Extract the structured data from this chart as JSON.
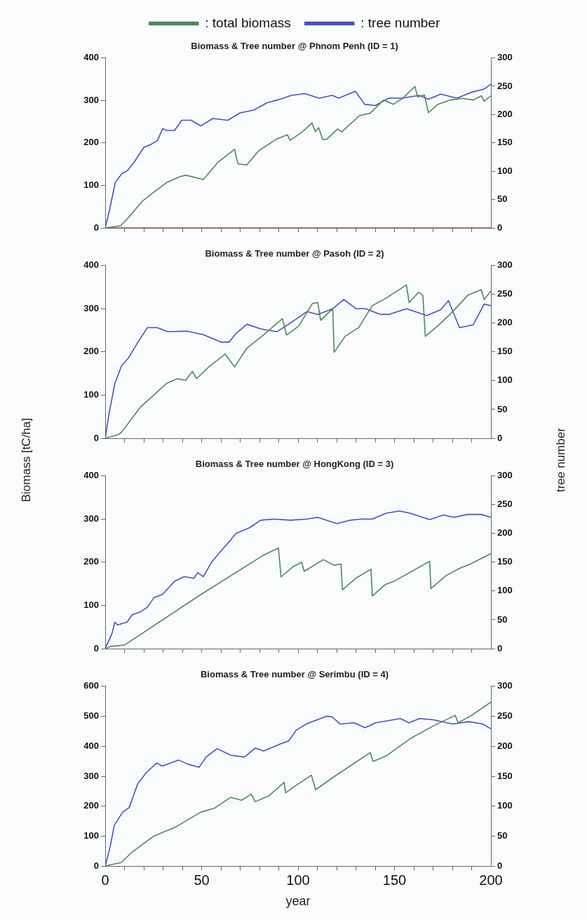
{
  "chart_data": [
    {
      "type": "line",
      "title": "Biomass & Tree number @ Phnom Penh (ID = 1)",
      "legend": "top",
      "marker": "none",
      "grid": false,
      "tick_labels": "y",
      "xlim": [
        0,
        200
      ],
      "xticks": [
        0,
        {
          "value": 10,
          "label": null
        },
        {
          "value": 20,
          "label": null
        },
        {
          "value": 30,
          "label": null
        },
        {
          "value": 40,
          "label": null
        },
        50,
        {
          "value": 60,
          "label": null
        },
        {
          "value": 70,
          "label": null
        },
        {
          "value": 80,
          "label": null
        },
        {
          "value": 90,
          "label": null
        },
        100,
        {
          "value": 110,
          "label": null
        },
        {
          "value": 120,
          "label": null
        },
        {
          "value": 130,
          "label": null
        },
        {
          "value": 140,
          "label": null
        },
        150,
        {
          "value": 160,
          "label": null
        },
        {
          "value": 170,
          "label": null
        },
        {
          "value": 180,
          "label": null
        },
        {
          "value": 190,
          "label": null
        },
        200
      ],
      "ylim": [
        0,
        400
      ],
      "yticks": [
        0,
        100,
        200,
        300,
        400
      ],
      "y2lim": [
        0,
        300
      ],
      "y2ticks": [
        0,
        50,
        100,
        150,
        200,
        250,
        300
      ],
      "series": [
        {
          "name": ": total biomass",
          "color": "#4a8a5a",
          "x": [
            0,
            8,
            13.6,
            19.3,
            24.9,
            32,
            39,
            41.8,
            50.9,
            58.6,
            67.1,
            68.8,
            73.4,
            79.7,
            88.9,
            94.5,
            95.9,
            102.2,
            107.2,
            109,
            110.7,
            112.8,
            115,
            120.5,
            122.6,
            131.8,
            137.4,
            144.4,
            149.4,
            154.3,
            160.6,
            162,
            165.5,
            167.6,
            172.6,
            178.9,
            185.2,
            190.9,
            195.1,
            196.5,
            200
          ],
          "values": [
            0,
            5,
            32,
            63,
            83,
            107,
            121,
            124,
            114,
            155,
            185,
            151,
            148,
            182,
            209,
            219,
            206,
            226,
            247,
            226,
            236,
            208,
            209,
            233,
            226,
            264,
            270,
            301,
            291,
            305,
            333,
            308,
            313,
            271,
            291,
            301,
            305,
            301,
            311,
            298,
            311
          ]
        },
        {
          "name": ": tree number",
          "color": "#4a50c0",
          "axis": "y2",
          "x": [
            0,
            2.4,
            5.2,
            8.7,
            11.5,
            15,
            20,
            23.5,
            27,
            29.8,
            32,
            36,
            39.7,
            44.6,
            49.5,
            55.8,
            63.6,
            69.9,
            77,
            84,
            89.6,
            96.6,
            103.6,
            111,
            117.7,
            121,
            129.7,
            134.6,
            140,
            147,
            154,
            162.7,
            167.6,
            174,
            182.4,
            189.5,
            196.5,
            200
          ],
          "values": [
            0,
            34,
            80,
            96,
            101,
            116,
            142,
            147,
            154,
            175,
            172,
            172,
            190,
            190,
            180,
            193,
            190,
            203,
            208,
            221,
            226,
            234,
            237,
            229,
            234,
            229,
            241,
            218,
            216,
            229,
            229,
            234,
            227,
            236,
            229,
            239,
            245,
            254
          ]
        },
        {
          "color": "#d04a3a",
          "x": [
            0,
            200
          ],
          "values": [
            0,
            0
          ]
        }
      ]
    },
    {
      "type": "line",
      "title": "Biomass & Tree number @ Pasoh (ID = 2)",
      "marker": "none",
      "grid": false,
      "tick_labels": "y",
      "ylabel": "Biomass [tC/ha]",
      "y2label": "tree number",
      "xlim": [
        0,
        200
      ],
      "xticks": [
        0,
        {
          "value": 10,
          "label": null
        },
        {
          "value": 20,
          "label": null
        },
        {
          "value": 30,
          "label": null
        },
        {
          "value": 40,
          "label": null
        },
        50,
        {
          "value": 60,
          "label": null
        },
        {
          "value": 70,
          "label": null
        },
        {
          "value": 80,
          "label": null
        },
        {
          "value": 90,
          "label": null
        },
        100,
        {
          "value": 110,
          "label": null
        },
        {
          "value": 120,
          "label": null
        },
        {
          "value": 130,
          "label": null
        },
        {
          "value": 140,
          "label": null
        },
        150,
        {
          "value": 160,
          "label": null
        },
        {
          "value": 170,
          "label": null
        },
        {
          "value": 180,
          "label": null
        },
        {
          "value": 190,
          "label": null
        },
        200
      ],
      "ylim": [
        0,
        400
      ],
      "yticks": [
        0,
        100,
        200,
        300,
        400
      ],
      "y2lim": [
        0,
        300
      ],
      "y2ticks": [
        0,
        50,
        100,
        150,
        200,
        250,
        300
      ],
      "series": [
        {
          "color": "#4a8a5a",
          "x": [
            0,
            7,
            8.5,
            18.4,
            26.9,
            31.8,
            37.5,
            41.7,
            45.2,
            47.4,
            53.7,
            62.2,
            67.1,
            73.5,
            82,
            91.9,
            94,
            100.4,
            107.4,
            110.2,
            111.7,
            118,
            118.7,
            124.4,
            131.4,
            138.5,
            145.5,
            156.2,
            157.6,
            162.5,
            164.7,
            166,
            172.4,
            179.5,
            188,
            195,
            196.5,
            200
          ],
          "values": [
            0,
            9,
            14,
            73,
            107,
            127,
            138,
            134,
            155,
            138,
            165,
            195,
            165,
            209,
            239,
            277,
            239,
            260,
            312,
            314,
            273,
            300,
            199,
            236,
            256,
            307,
            324,
            355,
            314,
            338,
            331,
            236,
            260,
            290,
            331,
            344,
            321,
            341
          ]
        },
        {
          "color": "#4a50c0",
          "axis": "y2",
          "x": [
            0,
            2.1,
            5,
            8.5,
            12,
            17,
            21.9,
            26.9,
            32.5,
            42.4,
            50.9,
            60,
            64.3,
            67.8,
            73.5,
            80.6,
            89,
            94.7,
            104.6,
            110.2,
            118,
            123.7,
            130,
            135,
            142.8,
            147,
            156.2,
            166.8,
            173.9,
            178,
            183.7,
            190.8,
            196.5,
            200
          ],
          "values": [
            0,
            45,
            95,
            126,
            139,
            167,
            192,
            192,
            185,
            186,
            180,
            167,
            167,
            182,
            198,
            190,
            185,
            197,
            220,
            215,
            225,
            241,
            225,
            225,
            215,
            215,
            225,
            213,
            223,
            239,
            192,
            197,
            233,
            230
          ]
        }
      ]
    },
    {
      "type": "line",
      "title": "Biomass & Tree number @ HongKong (ID = 3)",
      "marker": "none",
      "grid": false,
      "tick_labels": "y",
      "xlim": [
        0,
        200
      ],
      "xticks": [
        0,
        {
          "value": 10,
          "label": null
        },
        {
          "value": 20,
          "label": null
        },
        {
          "value": 30,
          "label": null
        },
        {
          "value": 40,
          "label": null
        },
        50,
        {
          "value": 60,
          "label": null
        },
        {
          "value": 70,
          "label": null
        },
        {
          "value": 80,
          "label": null
        },
        {
          "value": 90,
          "label": null
        },
        100,
        {
          "value": 110,
          "label": null
        },
        {
          "value": 120,
          "label": null
        },
        {
          "value": 130,
          "label": null
        },
        {
          "value": 140,
          "label": null
        },
        150,
        {
          "value": 160,
          "label": null
        },
        {
          "value": 170,
          "label": null
        },
        {
          "value": 180,
          "label": null
        },
        {
          "value": 190,
          "label": null
        },
        200
      ],
      "ylim": [
        0,
        400
      ],
      "yticks": [
        0,
        100,
        200,
        300,
        400
      ],
      "y2lim": [
        0,
        300
      ],
      "y2ticks": [
        0,
        50,
        100,
        150,
        200,
        250,
        300
      ],
      "series": [
        {
          "color": "#4a8a5a",
          "x": [
            0,
            2.8,
            9.9,
            49.5,
            82,
            89.8,
            91.2,
            97.5,
            101.8,
            103.2,
            113.1,
            118.7,
            122.3,
            123,
            130,
            137.8,
            138.5,
            145.5,
            149.8,
            168.2,
            168.9,
            176.7,
            183.7,
            189.4,
            200
          ],
          "values": [
            0,
            5,
            8,
            125,
            216,
            233,
            166,
            190,
            200,
            179,
            206,
            193,
            196,
            136,
            163,
            184,
            122,
            149,
            156,
            202,
            139,
            169,
            186,
            196,
            220
          ]
        },
        {
          "color": "#4a50c0",
          "axis": "y2",
          "x": [
            0,
            3.5,
            5,
            6.4,
            11.3,
            14.1,
            18.4,
            21.9,
            25.4,
            29.7,
            36,
            41,
            46,
            48,
            50.9,
            55.1,
            59.4,
            63.6,
            67.8,
            74.9,
            80.6,
            87.6,
            96.1,
            104.6,
            110.2,
            120.1,
            127.2,
            132.9,
            138.5,
            145.5,
            152.6,
            158.3,
            168.2,
            175.3,
            180.9,
            188,
            195,
            200
          ],
          "values": [
            0,
            26,
            46,
            41,
            46,
            59,
            64,
            72,
            89,
            94,
            117,
            125,
            122,
            132,
            125,
            150,
            167,
            183,
            200,
            210,
            223,
            225,
            223,
            225,
            228,
            217,
            223,
            225,
            225,
            235,
            239,
            235,
            224,
            232,
            228,
            233,
            233,
            228
          ]
        }
      ]
    },
    {
      "type": "line",
      "title": "Biomass & Tree number @ Serimbu (ID = 4)",
      "marker": "none",
      "grid": false,
      "xlabel": "year",
      "xlim": [
        0,
        200
      ],
      "xticks": [
        0,
        {
          "value": 10,
          "label": null
        },
        {
          "value": 20,
          "label": null
        },
        {
          "value": 30,
          "label": null
        },
        {
          "value": 40,
          "label": null
        },
        50,
        {
          "value": 60,
          "label": null
        },
        {
          "value": 70,
          "label": null
        },
        {
          "value": 80,
          "label": null
        },
        {
          "value": 90,
          "label": null
        },
        100,
        {
          "value": 110,
          "label": null
        },
        {
          "value": 120,
          "label": null
        },
        {
          "value": 130,
          "label": null
        },
        {
          "value": 140,
          "label": null
        },
        150,
        {
          "value": 160,
          "label": null
        },
        {
          "value": 170,
          "label": null
        },
        {
          "value": 180,
          "label": null
        },
        {
          "value": 190,
          "label": null
        },
        200
      ],
      "ylim": [
        0,
        600
      ],
      "yticks": [
        0,
        100,
        200,
        300,
        400,
        500,
        600
      ],
      "y2lim": [
        0,
        300
      ],
      "y2ticks": [
        0,
        50,
        100,
        150,
        200,
        250,
        300
      ],
      "series": [
        {
          "color": "#4a8a5a",
          "x": [
            0,
            2.6,
            8.2,
            13.9,
            25.3,
            36.6,
            49.4,
            56.5,
            65.1,
            70.7,
            75.7,
            77.8,
            84.9,
            92.8,
            93.5,
            99.1,
            106.9,
            109.1,
            119,
            137.5,
            138.9,
            146,
            158.8,
            170.2,
            181.5,
            183,
            190,
            200
          ],
          "values": [
            0,
            5,
            12,
            47,
            101,
            131,
            180,
            193,
            230,
            220,
            240,
            215,
            235,
            280,
            245,
            270,
            304,
            255,
            300,
            379,
            349,
            369,
            428,
            468,
            503,
            478,
            503,
            547
          ]
        },
        {
          "color": "#4a50c0",
          "axis": "y2",
          "x": [
            0,
            2.6,
            4.7,
            9,
            12.5,
            16.8,
            21,
            26.7,
            29.5,
            38,
            43,
            48.7,
            52.3,
            58,
            65.1,
            72.2,
            77.8,
            82.1,
            91,
            95.2,
            99.1,
            104.8,
            114.8,
            117.6,
            121.9,
            129,
            134.7,
            140.3,
            153.1,
            157.4,
            163,
            170.2,
            180.1,
            188.6,
            195.7,
            200
          ],
          "values": [
            0,
            33,
            68,
            90,
            98,
            137,
            155,
            172,
            167,
            177,
            170,
            165,
            182,
            196,
            185,
            182,
            197,
            192,
            204,
            209,
            227,
            238,
            250,
            249,
            237,
            239,
            231,
            239,
            246,
            239,
            246,
            244,
            237,
            241,
            237,
            229
          ]
        }
      ]
    }
  ]
}
